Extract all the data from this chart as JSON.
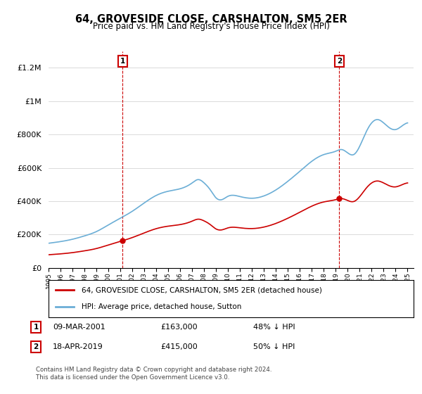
{
  "title": "64, GROVESIDE CLOSE, CARSHALTON, SM5 2ER",
  "subtitle": "Price paid vs. HM Land Registry's House Price Index (HPI)",
  "legend_line1": "64, GROVESIDE CLOSE, CARSHALTON, SM5 2ER (detached house)",
  "legend_line2": "HPI: Average price, detached house, Sutton",
  "sale1_label": "1",
  "sale1_date": "09-MAR-2001",
  "sale1_price": "£163,000",
  "sale1_hpi": "48% ↓ HPI",
  "sale1_year": 2001.19,
  "sale1_value": 163000,
  "sale2_label": "2",
  "sale2_date": "18-APR-2019",
  "sale2_price": "£415,000",
  "sale2_hpi": "50% ↓ HPI",
  "sale2_year": 2019.29,
  "sale2_value": 415000,
  "copyright": "Contains HM Land Registry data © Crown copyright and database right 2024.\nThis data is licensed under the Open Government Licence v3.0.",
  "hpi_color": "#6baed6",
  "price_color": "#cc0000",
  "background_color": "#ffffff",
  "ylim": [
    0,
    1300000
  ],
  "xlim_start": 1995.0,
  "xlim_end": 2025.5
}
